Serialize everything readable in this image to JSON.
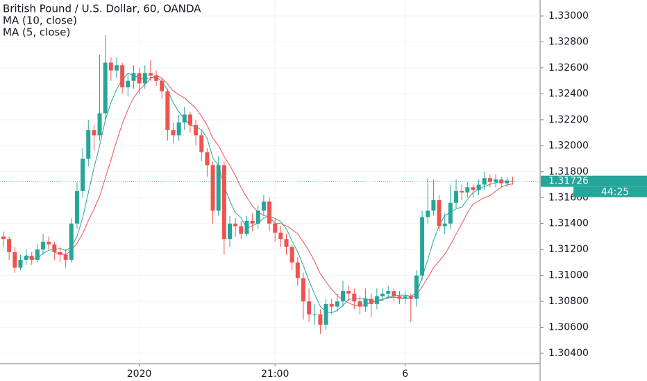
{
  "chart_data": {
    "type": "candlestick",
    "title": "British Pound / U.S. Dollar, 60, OANDA",
    "up_color": "#26a69a",
    "down_color": "#ef5350",
    "ylim": [
      1.3032,
      1.33123
    ],
    "yticks": [
      {
        "value": 1.33,
        "label": "1.33000"
      },
      {
        "value": 1.328,
        "label": "1.32800"
      },
      {
        "value": 1.326,
        "label": "1.32600"
      },
      {
        "value": 1.324,
        "label": "1.32400"
      },
      {
        "value": 1.322,
        "label": "1.32200"
      },
      {
        "value": 1.32,
        "label": "1.32000"
      },
      {
        "value": 1.318,
        "label": "1.31800"
      },
      {
        "value": 1.316,
        "label": "1.31600"
      },
      {
        "value": 1.314,
        "label": "1.31400"
      },
      {
        "value": 1.312,
        "label": "1.31200"
      },
      {
        "value": 1.31,
        "label": "1.31000"
      },
      {
        "value": 1.308,
        "label": "1.30800"
      },
      {
        "value": 1.306,
        "label": "1.30600"
      },
      {
        "value": 1.304,
        "label": "1.30400"
      }
    ],
    "grid": true,
    "last_price": 1.31726,
    "countdown": "44:25",
    "moving_averages": [
      {
        "name": "MA (10, close)",
        "period": 10,
        "color": "#ef5350"
      },
      {
        "name": "MA (5, close)",
        "period": 5,
        "color": "#26a69a"
      }
    ],
    "categories": [
      null,
      null,
      null,
      null,
      null,
      null,
      null,
      null,
      null,
      null,
      null,
      null,
      null,
      null,
      null,
      null,
      null,
      null,
      null,
      null,
      null,
      null,
      null,
      null,
      "2020",
      null,
      null,
      null,
      null,
      null,
      null,
      null,
      null,
      null,
      null,
      null,
      null,
      null,
      null,
      null,
      null,
      null,
      null,
      null,
      null,
      null,
      null,
      null,
      "21:00",
      null,
      null,
      null,
      null,
      null,
      null,
      null,
      null,
      null,
      null,
      null,
      null,
      null,
      null,
      null,
      null,
      null,
      null,
      null,
      null,
      null,
      null,
      "6",
      null,
      null,
      null,
      null,
      null,
      null,
      null,
      null,
      null,
      null,
      null,
      null,
      null,
      null,
      null,
      null,
      null,
      null,
      null
    ],
    "ohlc": [
      [
        1.313,
        1.3134,
        1.3122,
        1.3128
      ],
      [
        1.3128,
        1.313,
        1.3112,
        1.3118
      ],
      [
        1.3118,
        1.3122,
        1.3102,
        1.3106
      ],
      [
        1.3106,
        1.3116,
        1.3104,
        1.3112
      ],
      [
        1.3112,
        1.312,
        1.3108,
        1.3115
      ],
      [
        1.3115,
        1.3118,
        1.3108,
        1.3112
      ],
      [
        1.3112,
        1.3124,
        1.311,
        1.312
      ],
      [
        1.312,
        1.3132,
        1.3116,
        1.3126
      ],
      [
        1.3126,
        1.313,
        1.312,
        1.3124
      ],
      [
        1.3124,
        1.3126,
        1.3112,
        1.3118
      ],
      [
        1.3118,
        1.3122,
        1.311,
        1.3116
      ],
      [
        1.3116,
        1.312,
        1.3106,
        1.3112
      ],
      [
        1.3112,
        1.3144,
        1.311,
        1.314
      ],
      [
        1.314,
        1.3172,
        1.3136,
        1.3165
      ],
      [
        1.3165,
        1.3198,
        1.316,
        1.319
      ],
      [
        1.319,
        1.322,
        1.3184,
        1.3212
      ],
      [
        1.3212,
        1.3216,
        1.3196,
        1.3208
      ],
      [
        1.3208,
        1.327,
        1.3204,
        1.3225
      ],
      [
        1.3225,
        1.3285,
        1.322,
        1.3264
      ],
      [
        1.3264,
        1.3268,
        1.325,
        1.3258
      ],
      [
        1.3258,
        1.3268,
        1.3252,
        1.3262
      ],
      [
        1.3262,
        1.3264,
        1.324,
        1.3245
      ],
      [
        1.3245,
        1.3256,
        1.3238,
        1.325
      ],
      [
        1.325,
        1.3262,
        1.3244,
        1.3256
      ],
      [
        1.3256,
        1.326,
        1.324,
        1.3248
      ],
      [
        1.3248,
        1.3262,
        1.3244,
        1.3256
      ],
      [
        1.3256,
        1.3266,
        1.325,
        1.3254
      ],
      [
        1.3254,
        1.3258,
        1.3246,
        1.325
      ],
      [
        1.325,
        1.3252,
        1.3236,
        1.3242
      ],
      [
        1.3242,
        1.3244,
        1.3204,
        1.3212
      ],
      [
        1.3212,
        1.3218,
        1.3202,
        1.3208
      ],
      [
        1.3208,
        1.3224,
        1.3204,
        1.3218
      ],
      [
        1.3218,
        1.323,
        1.3212,
        1.3224
      ],
      [
        1.3224,
        1.3226,
        1.321,
        1.3216
      ],
      [
        1.3216,
        1.322,
        1.32,
        1.3208
      ],
      [
        1.3208,
        1.3212,
        1.3188,
        1.3195
      ],
      [
        1.3195,
        1.3198,
        1.3176,
        1.3185
      ],
      [
        1.3185,
        1.3188,
        1.314,
        1.315
      ],
      [
        1.315,
        1.3192,
        1.3146,
        1.3185
      ],
      [
        1.3185,
        1.3188,
        1.3116,
        1.3128
      ],
      [
        1.3128,
        1.3146,
        1.3122,
        1.314
      ],
      [
        1.314,
        1.3144,
        1.313,
        1.3138
      ],
      [
        1.3138,
        1.3142,
        1.3128,
        1.3132
      ],
      [
        1.3132,
        1.3146,
        1.313,
        1.3142
      ],
      [
        1.3142,
        1.3148,
        1.3134,
        1.314
      ],
      [
        1.314,
        1.3154,
        1.3136,
        1.315
      ],
      [
        1.315,
        1.3162,
        1.3146,
        1.3157
      ],
      [
        1.3157,
        1.316,
        1.3134,
        1.314
      ],
      [
        1.314,
        1.3144,
        1.3126,
        1.3133
      ],
      [
        1.3133,
        1.3138,
        1.3122,
        1.3128
      ],
      [
        1.3128,
        1.3132,
        1.3116,
        1.3122
      ],
      [
        1.3122,
        1.3124,
        1.3104,
        1.311
      ],
      [
        1.311,
        1.3114,
        1.3092,
        1.3098
      ],
      [
        1.3098,
        1.3102,
        1.3066,
        1.308
      ],
      [
        1.308,
        1.309,
        1.3064,
        1.307
      ],
      [
        1.307,
        1.3078,
        1.3062,
        1.307
      ],
      [
        1.307,
        1.3074,
        1.3055,
        1.3062
      ],
      [
        1.3062,
        1.3082,
        1.3058,
        1.3078
      ],
      [
        1.3078,
        1.3082,
        1.307,
        1.3076
      ],
      [
        1.3076,
        1.3086,
        1.3072,
        1.308
      ],
      [
        1.308,
        1.3096,
        1.3076,
        1.3088
      ],
      [
        1.3088,
        1.3092,
        1.308,
        1.3086
      ],
      [
        1.3086,
        1.309,
        1.3074,
        1.308
      ],
      [
        1.308,
        1.3084,
        1.307,
        1.3076
      ],
      [
        1.3076,
        1.309,
        1.3072,
        1.3082
      ],
      [
        1.3082,
        1.3086,
        1.3068,
        1.3078
      ],
      [
        1.3078,
        1.309,
        1.3074,
        1.3084
      ],
      [
        1.3084,
        1.309,
        1.308,
        1.3086
      ],
      [
        1.3086,
        1.3092,
        1.3082,
        1.3088
      ],
      [
        1.3088,
        1.309,
        1.308,
        1.3084
      ],
      [
        1.3084,
        1.3088,
        1.3078,
        1.3082
      ],
      [
        1.3082,
        1.3088,
        1.3078,
        1.3084
      ],
      [
        1.3084,
        1.3086,
        1.3064,
        1.3082
      ],
      [
        1.3082,
        1.3104,
        1.3076,
        1.31
      ],
      [
        1.31,
        1.315,
        1.3096,
        1.3145
      ],
      [
        1.3145,
        1.3175,
        1.314,
        1.315
      ],
      [
        1.315,
        1.3174,
        1.3146,
        1.3158
      ],
      [
        1.3158,
        1.3162,
        1.3134,
        1.3138
      ],
      [
        1.3138,
        1.3148,
        1.3132,
        1.314
      ],
      [
        1.314,
        1.317,
        1.3136,
        1.3156
      ],
      [
        1.3156,
        1.3174,
        1.3152,
        1.3165
      ],
      [
        1.3165,
        1.317,
        1.3158,
        1.3164
      ],
      [
        1.3164,
        1.3172,
        1.316,
        1.3168
      ],
      [
        1.3168,
        1.317,
        1.316,
        1.3166
      ],
      [
        1.3166,
        1.3174,
        1.3162,
        1.317
      ],
      [
        1.317,
        1.318,
        1.3166,
        1.3175
      ],
      [
        1.3175,
        1.3178,
        1.3168,
        1.3172
      ],
      [
        1.3172,
        1.3178,
        1.3168,
        1.3174
      ],
      [
        1.3174,
        1.3176,
        1.3168,
        1.3171
      ],
      [
        1.3171,
        1.3176,
        1.3168,
        1.3173
      ],
      [
        1.3173,
        1.3176,
        1.317,
        1.31726
      ]
    ]
  }
}
